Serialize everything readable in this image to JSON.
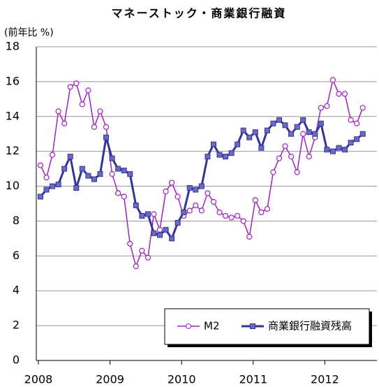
{
  "chart_data": {
    "type": "line",
    "title": "マネーストック・商業銀行融資",
    "y_axis_label": "(前年比 %)",
    "categories": [
      "2008",
      null,
      null,
      null,
      null,
      null,
      null,
      null,
      null,
      null,
      null,
      null,
      "2009",
      null,
      null,
      null,
      null,
      null,
      null,
      null,
      null,
      null,
      null,
      null,
      "2010",
      null,
      null,
      null,
      null,
      null,
      null,
      null,
      null,
      null,
      null,
      null,
      "2011",
      null,
      null,
      null,
      null,
      null,
      null,
      null,
      null,
      null,
      null,
      null,
      "2012",
      null,
      null,
      null,
      null,
      null,
      null
    ],
    "series": [
      {
        "name": "M2",
        "color": "#a020c0",
        "marker": "circle",
        "values": [
          11.2,
          10.5,
          11.8,
          14.3,
          13.6,
          15.7,
          15.9,
          14.7,
          15.5,
          13.4,
          14.3,
          13.4,
          10.7,
          9.6,
          9.4,
          6.7,
          5.4,
          6.3,
          5.9,
          8.4,
          7.5,
          9.7,
          10.2,
          9.4,
          8.3,
          8.6,
          8.9,
          8.6,
          9.6,
          9.1,
          8.5,
          8.3,
          8.2,
          8.3,
          8.0,
          7.1,
          9.2,
          8.5,
          8.7,
          10.8,
          11.6,
          12.3,
          11.7,
          10.8,
          13.0,
          11.7,
          12.8,
          14.5,
          14.6,
          16.1,
          15.3,
          15.3,
          13.8,
          13.6,
          14.5
        ]
      },
      {
        "name": "商業銀行融資残高",
        "color": "#33339a",
        "marker": "square",
        "values": [
          9.4,
          9.8,
          10.0,
          10.1,
          11.0,
          11.7,
          9.9,
          11.0,
          10.6,
          10.4,
          10.7,
          12.8,
          11.6,
          11.0,
          10.9,
          10.7,
          8.9,
          8.3,
          8.4,
          7.3,
          7.2,
          7.5,
          7.0,
          7.9,
          8.5,
          9.9,
          9.8,
          10.0,
          11.7,
          12.4,
          11.8,
          11.7,
          11.9,
          12.4,
          13.2,
          12.8,
          13.1,
          12.2,
          13.2,
          13.6,
          13.8,
          13.5,
          13.0,
          13.4,
          13.8,
          13.1,
          13.0,
          13.6,
          12.1,
          12.0,
          12.2,
          12.1,
          12.5,
          12.7,
          13.0
        ]
      }
    ],
    "ylim": [
      0,
      18
    ],
    "yticks": [
      0,
      2,
      4,
      6,
      8,
      10,
      12,
      14,
      16,
      18
    ],
    "grid": true,
    "legend": "lower right"
  }
}
